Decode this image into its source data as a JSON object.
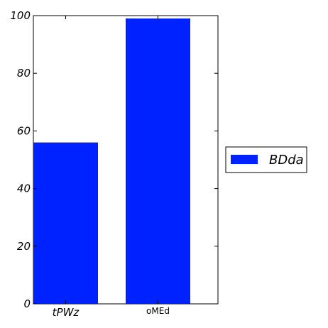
{
  "chart_data": {
    "type": "bar",
    "categories": [
      "tPWz",
      "oMEd"
    ],
    "series": [
      {
        "name": "BDda",
        "values": [
          56,
          99
        ],
        "color": "#0022ff"
      }
    ],
    "title": "",
    "xlabel": "",
    "ylabel": "",
    "ylim": [
      0,
      100
    ],
    "yticks": [
      0,
      20,
      40,
      60,
      80,
      100
    ],
    "grid": false,
    "legend": "outside-right"
  }
}
